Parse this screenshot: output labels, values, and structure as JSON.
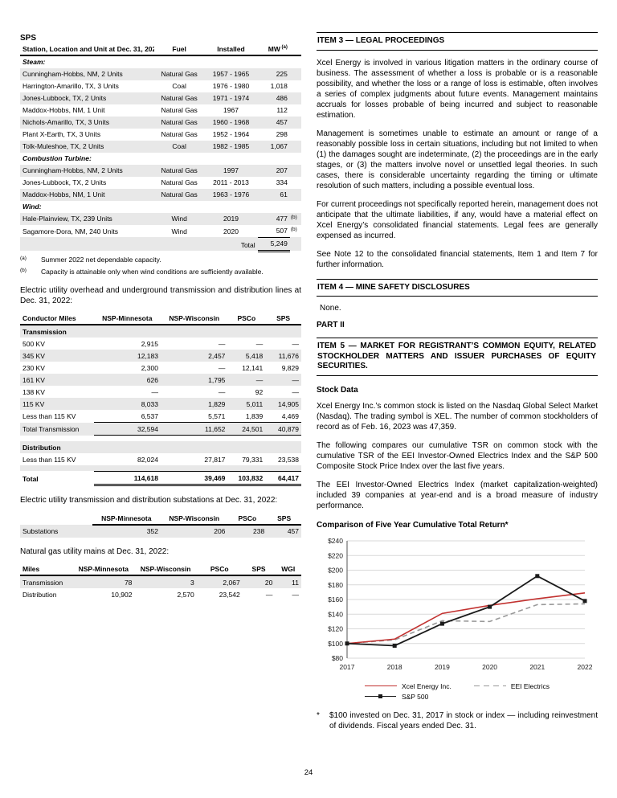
{
  "page": {
    "number": "24"
  },
  "left": {
    "sps": {
      "title": "SPS",
      "columns": [
        "Station, Location and Unit at Dec. 31, 2022",
        "Fuel",
        "Installed",
        "MW"
      ],
      "mw_sup": "(a)",
      "sections": [
        {
          "label": "Steam:",
          "rows": [
            {
              "station": "Cunningham-Hobbs, NM, 2 Units",
              "fuel": "Natural Gas",
              "installed": "1957 - 1965",
              "mw": "225",
              "sup": ""
            },
            {
              "station": "Harrington-Amarillo, TX, 3 Units",
              "fuel": "Coal",
              "installed": "1976 - 1980",
              "mw": "1,018",
              "sup": ""
            },
            {
              "station": "Jones-Lubbock, TX, 2 Units",
              "fuel": "Natural Gas",
              "installed": "1971 - 1974",
              "mw": "486",
              "sup": ""
            },
            {
              "station": "Maddox-Hobbs, NM, 1 Unit",
              "fuel": "Natural Gas",
              "installed": "1967",
              "mw": "112",
              "sup": ""
            },
            {
              "station": "Nichols-Amarillo, TX, 3 Units",
              "fuel": "Natural Gas",
              "installed": "1960 - 1968",
              "mw": "457",
              "sup": ""
            },
            {
              "station": "Plant X-Earth, TX, 3 Units",
              "fuel": "Natural Gas",
              "installed": "1952 - 1964",
              "mw": "298",
              "sup": ""
            },
            {
              "station": "Tolk-Muleshoe, TX, 2 Units",
              "fuel": "Coal",
              "installed": "1982 - 1985",
              "mw": "1,067",
              "sup": ""
            }
          ]
        },
        {
          "label": "Combustion Turbine:",
          "rows": [
            {
              "station": "Cunningham-Hobbs, NM, 2 Units",
              "fuel": "Natural Gas",
              "installed": "1997",
              "mw": "207",
              "sup": ""
            },
            {
              "station": "Jones-Lubbock, TX, 2 Units",
              "fuel": "Natural Gas",
              "installed": "2011 - 2013",
              "mw": "334",
              "sup": ""
            },
            {
              "station": "Maddox-Hobbs, NM, 1 Unit",
              "fuel": "Natural Gas",
              "installed": "1963 - 1976",
              "mw": "61",
              "sup": ""
            }
          ]
        },
        {
          "label": "Wind:",
          "rows": [
            {
              "station": "Hale-Plainview, TX, 239 Units",
              "fuel": "Wind",
              "installed": "2019",
              "mw": "477",
              "sup": "(b)"
            },
            {
              "station": "Sagamore-Dora, NM, 240 Units",
              "fuel": "Wind",
              "installed": "2020",
              "mw": "507",
              "sup": "(b)"
            }
          ]
        }
      ],
      "total_label": "Total",
      "total_value": "5,249",
      "footnotes": [
        {
          "marker": "(a)",
          "text": "Summer 2022 net dependable capacity."
        },
        {
          "marker": "(b)",
          "text": "Capacity is attainable only when wind conditions are sufficiently available."
        }
      ]
    },
    "lines_intro": "Electric utility overhead and underground transmission and distribution lines at Dec. 31, 2022:",
    "lines_table": {
      "columns": [
        "Conductor Miles",
        "NSP-Minnesota",
        "NSP-Wisconsin",
        "PSCo",
        "SPS"
      ],
      "rows": [
        {
          "kind": "section",
          "shaded": true,
          "cells": [
            "Transmission",
            "",
            "",
            "",
            ""
          ]
        },
        {
          "kind": "data",
          "shaded": false,
          "cells": [
            "500 KV",
            "2,915",
            "—",
            "—",
            "—"
          ]
        },
        {
          "kind": "data",
          "shaded": true,
          "cells": [
            "345 KV",
            "12,183",
            "2,457",
            "5,418",
            "11,676"
          ]
        },
        {
          "kind": "data",
          "shaded": false,
          "cells": [
            "230 KV",
            "2,300",
            "—",
            "12,141",
            "9,829"
          ]
        },
        {
          "kind": "data",
          "shaded": true,
          "cells": [
            "161 KV",
            "626",
            "1,795",
            "—",
            "—"
          ]
        },
        {
          "kind": "data",
          "shaded": false,
          "cells": [
            "138 KV",
            "—",
            "—",
            "92",
            "—"
          ]
        },
        {
          "kind": "data",
          "shaded": true,
          "cells": [
            "115 KV",
            "8,033",
            "1,829",
            "5,011",
            "14,905"
          ]
        },
        {
          "kind": "data",
          "shaded": false,
          "rule": true,
          "cells": [
            "Less than 115 KV",
            "6,537",
            "5,571",
            "1,839",
            "4,469"
          ]
        },
        {
          "kind": "total",
          "shaded": true,
          "cells": [
            "Total Transmission",
            "32,594",
            "11,652",
            "24,501",
            "40,879"
          ]
        },
        {
          "kind": "blank",
          "shaded": false,
          "cells": [
            "",
            "",
            "",
            "",
            ""
          ]
        },
        {
          "kind": "section",
          "shaded": true,
          "cells": [
            "Distribution",
            "",
            "",
            "",
            ""
          ]
        },
        {
          "kind": "data",
          "shaded": false,
          "cells": [
            "Less than 115 KV",
            "82,024",
            "27,817",
            "79,331",
            "23,538"
          ]
        },
        {
          "kind": "blank",
          "shaded": true,
          "cells": [
            "",
            "",
            "",
            "",
            ""
          ]
        },
        {
          "kind": "grandtotal",
          "shaded": false,
          "cells": [
            "Total",
            "114,618",
            "39,469",
            "103,832",
            "64,417"
          ]
        }
      ]
    },
    "substations_intro": "Electric utility transmission and distribution substations at Dec. 31, 2022:",
    "substations_table": {
      "columns": [
        "",
        "NSP-Minnesota",
        "NSP-Wisconsin",
        "PSCo",
        "SPS"
      ],
      "rows": [
        {
          "kind": "data",
          "shaded": true,
          "cells": [
            "Substations",
            "352",
            "206",
            "238",
            "457"
          ]
        }
      ]
    },
    "gas_intro": "Natural gas utility mains at Dec. 31, 2022:",
    "gas_table": {
      "columns": [
        "Miles",
        "NSP-Minnesota",
        "NSP-Wisconsin",
        "PSCo",
        "SPS",
        "WGI"
      ],
      "rows": [
        {
          "kind": "data",
          "shaded": true,
          "cells": [
            "Transmission",
            "78",
            "3",
            "2,067",
            "20",
            "11"
          ]
        },
        {
          "kind": "data",
          "shaded": false,
          "cells": [
            "Distribution",
            "10,902",
            "2,570",
            "23,542",
            "—",
            "—"
          ]
        }
      ]
    }
  },
  "right": {
    "item3": {
      "heading": "ITEM 3 — LEGAL PROCEEDINGS",
      "paragraphs": [
        "Xcel Energy is involved in various litigation matters in the ordinary course of business. The assessment of whether a loss is probable or is a reasonable possibility, and whether the loss or a range of loss is estimable, often involves a series of complex judgments about future events. Management maintains accruals for losses probable of being incurred and subject to reasonable estimation.",
        "Management is sometimes unable to estimate an amount or range of a reasonably possible loss in certain situations, including but not limited to when (1) the damages sought are indeterminate, (2) the proceedings are in the early stages, or (3) the matters involve novel or unsettled legal theories. In such cases, there is considerable uncertainty regarding the timing or ultimate resolution of such matters, including a possible eventual loss.",
        "For current proceedings not specifically reported herein, management does not anticipate that the ultimate liabilities, if any, would have a material effect on Xcel Energy’s consolidated financial statements. Legal fees are generally expensed as incurred.",
        "See Note 12 to the consolidated financial statements, Item 1 and Item 7 for further information."
      ]
    },
    "item4": {
      "heading": "ITEM 4 — MINE SAFETY DISCLOSURES",
      "body": "None."
    },
    "part2": "PART II",
    "item5": {
      "heading": "ITEM 5 — MARKET FOR REGISTRANT’S COMMON EQUITY, RELATED STOCKHOLDER MATTERS AND ISSUER PURCHASES OF EQUITY SECURITIES."
    },
    "stock_data": {
      "heading": "Stock Data",
      "paragraphs": [
        "Xcel Energy Inc.’s common stock is listed on the Nasdaq Global Select Market (Nasdaq). The trading symbol is XEL. The number of common stockholders of record as of Feb. 16, 2023 was 47,359.",
        "The following compares our cumulative TSR on common stock with the cumulative TSR of the EEI Investor-Owned Electrics Index and the S&P 500 Composite Stock Price Index over the last five years.",
        "The EEI Investor-Owned Electrics Index (market capitalization-weighted) included 39 companies at year-end and is a broad measure of industry performance."
      ]
    },
    "chart_title": "Comparison of Five Year Cumulative Total Return*",
    "chart_footnote_marker": "*",
    "chart_footnote": "$100 invested on Dec. 31, 2017 in stock or index — including reinvestment of dividends. Fiscal years ended Dec. 31."
  },
  "chart_data": {
    "type": "line",
    "title": "Comparison of Five Year Cumulative Total Return*",
    "x": [
      "2017",
      "2018",
      "2019",
      "2020",
      "2021",
      "2022"
    ],
    "series": [
      {
        "name": "Xcel Energy Inc.",
        "color": "#c23230",
        "style": "solid",
        "marker": "none",
        "values": [
          100,
          106,
          141,
          152,
          161,
          169
        ]
      },
      {
        "name": "S&P 500",
        "color": "#1a1a1a",
        "style": "solid",
        "marker": "square",
        "values": [
          100,
          97,
          127,
          150,
          192,
          158
        ]
      },
      {
        "name": "EEI Electrics",
        "color": "#999999",
        "style": "dashed",
        "marker": "none",
        "values": [
          100,
          105,
          131,
          130,
          153,
          154
        ]
      }
    ],
    "ylim": [
      80,
      240
    ],
    "ytick_step": 20,
    "ytick_prefix": "$",
    "grid": "horizontal",
    "gridline_color": "#d9d9d9",
    "legend_position": "bottom"
  }
}
